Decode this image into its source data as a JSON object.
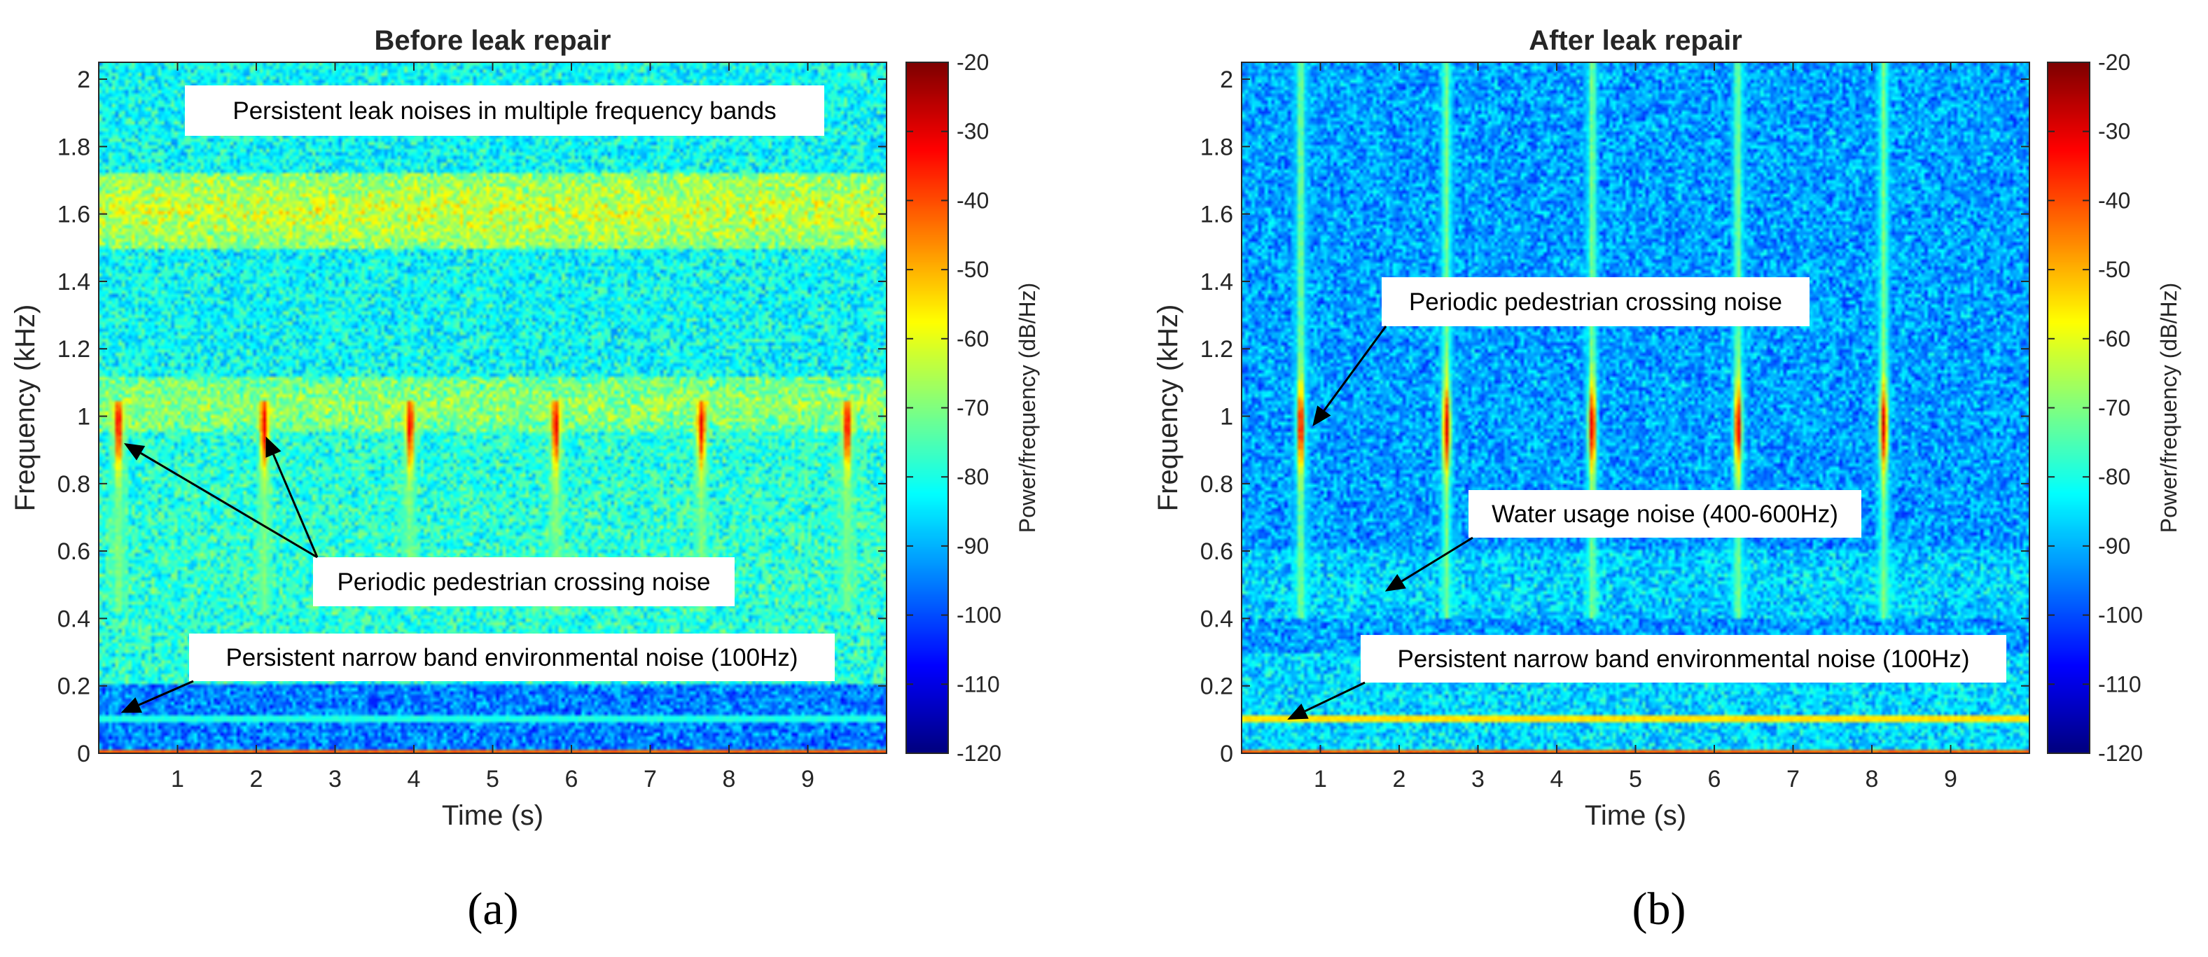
{
  "chart_data": [
    {
      "type": "heatmap",
      "title": "Before leak repair",
      "subfigure_label": "(a)",
      "xlabel": "Time (s)",
      "ylabel": "Frequency (kHz)",
      "xlim": [
        0,
        10
      ],
      "ylim": [
        0,
        2.05
      ],
      "xticks": [
        1,
        2,
        3,
        4,
        5,
        6,
        7,
        8,
        9
      ],
      "yticks": [
        0,
        0.2,
        0.4,
        0.6,
        0.8,
        1,
        1.2,
        1.4,
        1.6,
        1.8,
        2
      ],
      "colorbar": {
        "label": "Power/frequency (dB/Hz)",
        "clim": [
          -120,
          -20
        ],
        "ticks": [
          -20,
          -30,
          -40,
          -50,
          -60,
          -70,
          -80,
          -90,
          -100,
          -110,
          -120
        ],
        "colormap": "jet"
      },
      "spectrogram_features": {
        "background_level_db": -82,
        "bands": [
          {
            "f_low": 1.5,
            "f_high": 1.72,
            "level_db": -62
          },
          {
            "f_low": 0.95,
            "f_high": 1.12,
            "level_db": -68
          },
          {
            "f_low": 0.2,
            "f_high": 0.95,
            "level_db": -78
          }
        ],
        "low_band": {
          "f_low": 0.0,
          "f_high": 0.2,
          "level_db": -95
        },
        "narrowband_tones": [
          {
            "f": 0.1,
            "level_db": -80
          },
          {
            "f": 0.0,
            "level_db": -42
          }
        ],
        "impulse_times": [
          0.25,
          2.1,
          3.95,
          5.8,
          7.65,
          9.5
        ],
        "impulse_f_range": [
          0.42,
          1.05
        ],
        "impulse_peak_f": 0.97,
        "impulse_peak_db": -30
      },
      "annotations": [
        {
          "text": "Persistent leak noises in multiple frequency bands",
          "arrows": []
        },
        {
          "text": "Periodic pedestrian crossing noise",
          "arrows": [
            {
              "x": 0.32,
              "y": 0.92
            },
            {
              "x": 2.12,
              "y": 0.94
            }
          ]
        },
        {
          "text": "Persistent narrow band environmental noise (100Hz)",
          "arrows": [
            {
              "x": 0.28,
              "y": 0.12
            }
          ]
        }
      ]
    },
    {
      "type": "heatmap",
      "title": "After leak repair",
      "subfigure_label": "(b)",
      "xlabel": "Time (s)",
      "ylabel": "Frequency (kHz)",
      "xlim": [
        0,
        10
      ],
      "ylim": [
        0,
        2.05
      ],
      "xticks": [
        1,
        2,
        3,
        4,
        5,
        6,
        7,
        8,
        9
      ],
      "yticks": [
        0,
        0.2,
        0.4,
        0.6,
        0.8,
        1,
        1.2,
        1.4,
        1.6,
        1.8,
        2
      ],
      "colorbar": {
        "label": "Power/frequency (dB/Hz)",
        "clim": [
          -120,
          -20
        ],
        "ticks": [
          -20,
          -30,
          -40,
          -50,
          -60,
          -70,
          -80,
          -90,
          -100,
          -110,
          -120
        ],
        "colormap": "jet"
      },
      "spectrogram_features": {
        "background_level_db": -92,
        "bands": [
          {
            "f_low": 0.4,
            "f_high": 0.6,
            "level_db": -86
          }
        ],
        "low_band": {
          "f_low": 0.0,
          "f_high": 0.3,
          "level_db": -86
        },
        "narrowband_tones": [
          {
            "f": 0.1,
            "level_db": -55
          },
          {
            "f": 0.0,
            "level_db": -42
          }
        ],
        "impulse_times": [
          0.75,
          2.6,
          4.45,
          6.3,
          8.15
        ],
        "impulse_f_range": [
          0.4,
          2.05
        ],
        "impulse_peak_f": 0.97,
        "impulse_peak_db": -28
      },
      "annotations": [
        {
          "text": "Periodic pedestrian crossing noise",
          "arrows": [
            {
              "x": 0.9,
              "y": 0.97
            }
          ]
        },
        {
          "text": "Water usage noise (400-600Hz)",
          "arrows": [
            {
              "x": 1.82,
              "y": 0.48
            }
          ]
        },
        {
          "text": "Persistent narrow band environmental noise (100Hz)",
          "arrows": [
            {
              "x": 0.58,
              "y": 0.1
            }
          ]
        }
      ]
    }
  ]
}
